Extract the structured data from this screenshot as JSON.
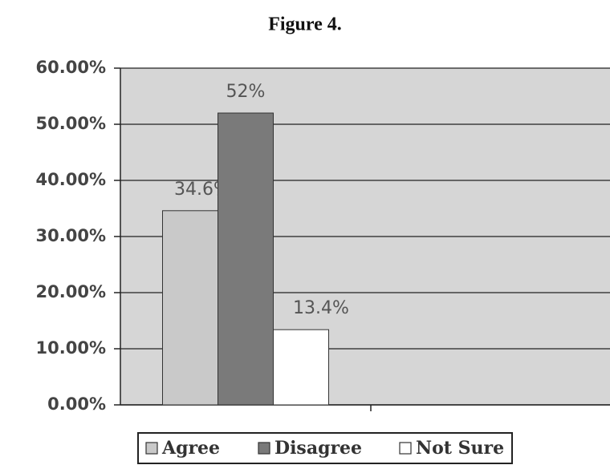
{
  "chart_data": {
    "type": "bar",
    "title": "Figure 4.",
    "categories": [
      null
    ],
    "series": [
      {
        "name": "Agree",
        "color": "#c9c9c9",
        "values": [
          34.6
        ],
        "value_labels": [
          "34.6%"
        ]
      },
      {
        "name": "Disagree",
        "color": "#7a7a7a",
        "values": [
          52
        ],
        "value_labels": [
          "52%"
        ]
      },
      {
        "name": "Not Sure",
        "color": "#ffffff",
        "values": [
          13.4
        ],
        "value_labels": [
          "13.4%"
        ]
      }
    ],
    "ylim": [
      0,
      60
    ],
    "yticks": [
      {
        "value": 0,
        "label": "0.00%"
      },
      {
        "value": 10,
        "label": "10.00%"
      },
      {
        "value": 20,
        "label": "20.00%"
      },
      {
        "value": 30,
        "label": "30.00%"
      },
      {
        "value": 40,
        "label": "40.00%"
      },
      {
        "value": 50,
        "label": "50.00%"
      },
      {
        "value": 60,
        "label": "60.00%"
      }
    ],
    "grid": true,
    "legend": "bottom"
  }
}
